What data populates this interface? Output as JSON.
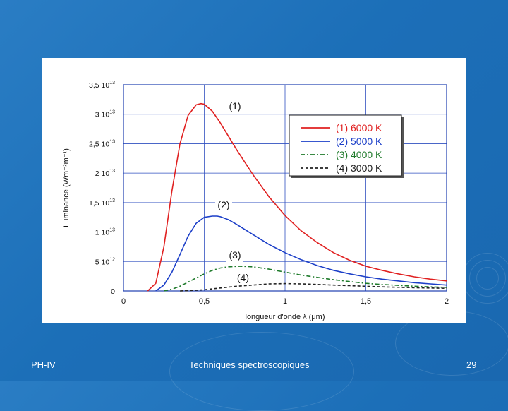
{
  "footer": {
    "left": "PH-IV",
    "center": "Techniques spectroscopiques",
    "page_number": "29"
  },
  "chart_data": {
    "type": "line",
    "title": "",
    "xlabel": "longueur d'onde λ (μm)",
    "ylabel": "Luminance (Wm⁻²m⁻¹)",
    "xlim": [
      0,
      2
    ],
    "ylim": [
      0,
      35000000000000
    ],
    "grid": true,
    "legend_position": "top-right",
    "x_ticks": [
      {
        "value": 0,
        "label": "0"
      },
      {
        "value": 0.5,
        "label": "0,5"
      },
      {
        "value": 1,
        "label": "1"
      },
      {
        "value": 1.5,
        "label": "1,5"
      },
      {
        "value": 2,
        "label": "2"
      }
    ],
    "y_ticks": [
      {
        "value": 0,
        "mantissa": "0",
        "exp": ""
      },
      {
        "value": 5000000000000,
        "mantissa": "5 10",
        "exp": "12"
      },
      {
        "value": 10000000000000,
        "mantissa": "1 10",
        "exp": "13"
      },
      {
        "value": 15000000000000,
        "mantissa": "1,5 10",
        "exp": "13"
      },
      {
        "value": 20000000000000,
        "mantissa": "2 10",
        "exp": "13"
      },
      {
        "value": 25000000000000,
        "mantissa": "2,5 10",
        "exp": "13"
      },
      {
        "value": 30000000000000,
        "mantissa": "3 10",
        "exp": "13"
      },
      {
        "value": 35000000000000,
        "mantissa": "3,5 10",
        "exp": "13"
      }
    ],
    "series": [
      {
        "name": "(1) 6000 K",
        "color": "#e02020",
        "dash": "",
        "x": [
          0.15,
          0.2,
          0.25,
          0.3,
          0.35,
          0.4,
          0.45,
          0.48,
          0.5,
          0.55,
          0.6,
          0.7,
          0.8,
          0.9,
          1.0,
          1.1,
          1.2,
          1.3,
          1.4,
          1.5,
          1.6,
          1.7,
          1.8,
          1.9,
          2.0
        ],
        "y": [
          0,
          1300000000000,
          7500000000000,
          17000000000000,
          25000000000000,
          29800000000000,
          31600000000000,
          31800000000000,
          31700000000000,
          30500000000000,
          28500000000000,
          24000000000000,
          19800000000000,
          16000000000000,
          12800000000000,
          10200000000000,
          8200000000000,
          6500000000000,
          5200000000000,
          4200000000000,
          3500000000000,
          2900000000000,
          2400000000000,
          2000000000000,
          1700000000000
        ]
      },
      {
        "name": "(2) 5000 K",
        "color": "#1c3fc8",
        "dash": "",
        "x": [
          0.2,
          0.25,
          0.3,
          0.35,
          0.4,
          0.45,
          0.5,
          0.55,
          0.58,
          0.6,
          0.65,
          0.7,
          0.8,
          0.9,
          1.0,
          1.1,
          1.2,
          1.3,
          1.4,
          1.5,
          1.6,
          1.7,
          1.8,
          1.9,
          2.0
        ],
        "y": [
          0,
          1000000000000,
          3200000000000,
          6200000000000,
          9300000000000,
          11500000000000,
          12500000000000,
          12700000000000,
          12700000000000,
          12600000000000,
          12100000000000,
          11300000000000,
          9600000000000,
          7900000000000,
          6500000000000,
          5300000000000,
          4300000000000,
          3500000000000,
          2900000000000,
          2400000000000,
          2000000000000,
          1700000000000,
          1400000000000,
          1200000000000,
          1000000000000
        ]
      },
      {
        "name": "(3) 4000 K",
        "color": "#1e7a2a",
        "dash": "6,3,2,3",
        "x": [
          0.25,
          0.3,
          0.35,
          0.4,
          0.45,
          0.5,
          0.55,
          0.6,
          0.65,
          0.72,
          0.8,
          0.9,
          1.0,
          1.1,
          1.2,
          1.3,
          1.4,
          1.5,
          1.6,
          1.7,
          1.8,
          1.9,
          2.0
        ],
        "y": [
          0,
          300000000000,
          800000000000,
          1500000000000,
          2200000000000,
          2900000000000,
          3500000000000,
          3900000000000,
          4100000000000,
          4200000000000,
          4100000000000,
          3700000000000,
          3200000000000,
          2700000000000,
          2300000000000,
          1900000000000,
          1600000000000,
          1300000000000,
          1100000000000,
          950000000000,
          800000000000,
          700000000000,
          600000000000
        ]
      },
      {
        "name": "(4) 3000 K",
        "color": "#222222",
        "dash": "4,3",
        "x": [
          0.35,
          0.4,
          0.5,
          0.6,
          0.7,
          0.8,
          0.9,
          1.0,
          1.1,
          1.2,
          1.3,
          1.4,
          1.5,
          1.6,
          1.8,
          2.0
        ],
        "y": [
          0,
          50000000000,
          200000000000,
          500000000000,
          800000000000,
          1000000000000,
          1200000000000,
          1250000000000,
          1200000000000,
          1100000000000,
          1000000000000,
          900000000000,
          800000000000,
          700000000000,
          550000000000,
          450000000000
        ]
      }
    ],
    "annotations": [
      {
        "text": "(1)",
        "x": 0.69,
        "y": 30800000000000
      },
      {
        "text": "(2)",
        "x": 0.62,
        "y": 14000000000000
      },
      {
        "text": "(3)",
        "x": 0.69,
        "y": 5500000000000
      },
      {
        "text": "(4)",
        "x": 0.74,
        "y": 1700000000000
      }
    ]
  }
}
